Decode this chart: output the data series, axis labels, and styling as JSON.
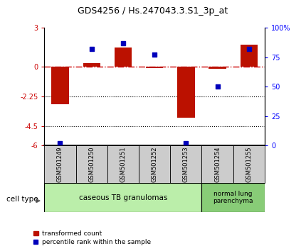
{
  "title": "GDS4256 / Hs.247043.3.S1_3p_at",
  "samples": [
    "GSM501249",
    "GSM501250",
    "GSM501251",
    "GSM501252",
    "GSM501253",
    "GSM501254",
    "GSM501255"
  ],
  "transformed_count": [
    -2.85,
    0.3,
    1.5,
    -0.1,
    -3.85,
    -0.15,
    1.7
  ],
  "percentile_rank": [
    2,
    82,
    87,
    77,
    2,
    50,
    82
  ],
  "left_ylim": [
    -6,
    3
  ],
  "left_yticks": [
    -6,
    -4.5,
    -2.25,
    0,
    3
  ],
  "left_yticklabels": [
    "-6",
    "-4.5",
    "-2.25",
    "0",
    "3"
  ],
  "right_ylim": [
    0,
    100
  ],
  "right_yticks": [
    0,
    25,
    50,
    75,
    100
  ],
  "right_yticklabels": [
    "0",
    "25",
    "50",
    "75",
    "100%"
  ],
  "hlines": [
    0,
    -2.25,
    -4.5
  ],
  "hline_styles": [
    "dashdot",
    "dotted",
    "dotted"
  ],
  "hline_colors": [
    "#cc0000",
    "#000000",
    "#000000"
  ],
  "bar_color": "#bb1100",
  "dot_color": "#0000bb",
  "group1_label": "caseous TB granulomas",
  "group1_count": 5,
  "group2_label": "normal lung\nparenchyma",
  "group2_count": 2,
  "group1_color": "#bbeeaa",
  "group2_color": "#88cc77",
  "cell_type_label": "cell type",
  "legend_bar_label": "transformed count",
  "legend_dot_label": "percentile rank within the sample",
  "bar_width": 0.55,
  "dot_size": 25,
  "label_box_color": "#cccccc",
  "background_color": "#ffffff"
}
